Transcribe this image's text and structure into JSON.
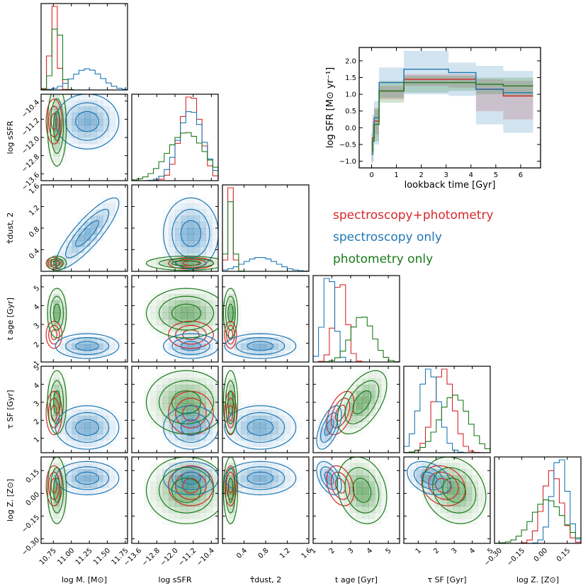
{
  "chart_data": {
    "type": "corner",
    "title": "",
    "parameters": [
      {
        "key": "logM",
        "label": "log M. [M⊙]",
        "range": [
          10.58,
          11.78
        ],
        "ticks": [
          10.75,
          11.0,
          11.25,
          11.5,
          11.75
        ],
        "tick_labels": [
          "10.75",
          "11.00",
          "11.25",
          "11.50",
          "11.75"
        ]
      },
      {
        "key": "logsSFR",
        "label": "log sSFR",
        "range": [
          -13.9,
          -10.1
        ],
        "ticks": [
          -13.6,
          -12.8,
          -12.0,
          -11.2,
          -10.4
        ],
        "tick_labels": [
          "−13.6",
          "−12.8",
          "−12.0",
          "−11.2",
          "−10.4"
        ]
      },
      {
        "key": "tau_dust",
        "label": "τ̂dust, 2",
        "range": [
          0.0,
          1.6
        ],
        "ticks": [
          0.4,
          0.8,
          1.2,
          1.6
        ],
        "tick_labels": [
          "0.4",
          "0.8",
          "1.2",
          "1.6"
        ]
      },
      {
        "key": "t_age",
        "label": "t age [Gyr]",
        "range": [
          1.0,
          5.6
        ],
        "ticks": [
          1,
          2,
          3,
          4,
          5
        ],
        "tick_labels": [
          "1",
          "2",
          "3",
          "4",
          "5"
        ]
      },
      {
        "key": "tau_SF",
        "label": "τ SF [Gyr]",
        "range": [
          0.2,
          5.0
        ],
        "ticks": [
          1,
          2,
          3,
          4,
          5
        ],
        "tick_labels": [
          "1",
          "2",
          "3",
          "4",
          "5"
        ]
      },
      {
        "key": "logZ",
        "label": "log Z. [Z⊙]",
        "range": [
          -0.33,
          0.24
        ],
        "ticks": [
          -0.3,
          -0.15,
          0.0,
          0.15
        ],
        "tick_labels": [
          "−0.30",
          "−0.15",
          "0.00",
          "0.15"
        ]
      }
    ],
    "series": [
      {
        "name": "spectroscopy+photometry",
        "color": "#d62728",
        "means": [
          10.76,
          -11.3,
          0.15,
          2.45,
          2.4,
          0.05
        ],
        "sigmas": [
          0.05,
          0.45,
          0.05,
          0.33,
          0.55,
          0.06
        ],
        "corr": {
          "4-3": 0.5,
          "5-3": -0.3,
          "5-4": -0.2
        }
      },
      {
        "name": "spectroscopy only",
        "color": "#1f77b4",
        "means": [
          11.22,
          -11.3,
          0.7,
          1.85,
          1.6,
          0.1
        ],
        "sigmas": [
          0.2,
          0.55,
          0.3,
          0.3,
          0.55,
          0.05
        ],
        "corr": {
          "2-0": 0.85,
          "4-3": 0.6,
          "5-3": -0.45,
          "5-4": -0.35
        }
      },
      {
        "name": "photometry only",
        "color": "#1a7a1a",
        "means": [
          10.8,
          -11.5,
          0.15,
          3.6,
          3.0,
          0.02
        ],
        "sigmas": [
          0.06,
          0.8,
          0.06,
          0.6,
          0.8,
          0.1
        ],
        "corr": {
          "4-3": 0.55,
          "5-3": -0.2,
          "5-4": -0.2
        }
      }
    ],
    "inset": {
      "type": "step",
      "xlabel": "lookback time [Gyr]",
      "ylabel": "log SFR [M⊙ yr⁻¹]",
      "xlim": [
        -0.5,
        6.8
      ],
      "ylim": [
        -1.2,
        2.4
      ],
      "xticks": [
        0,
        1,
        2,
        3,
        4,
        5,
        6
      ],
      "yticks": [
        -1.0,
        -0.5,
        0.0,
        0.5,
        1.0,
        1.5,
        2.0
      ],
      "ytick_labels": [
        "−1.0",
        "−0.5",
        "0.0",
        "0.5",
        "1.0",
        "1.5",
        "2.0"
      ],
      "edges": [
        0,
        0.03,
        0.1,
        0.3,
        1.3,
        3.1,
        4.2,
        5.3,
        6.5
      ],
      "series": [
        {
          "name": "spectroscopy+photometry",
          "color": "#d62728",
          "values": [
            -0.8,
            -0.3,
            0.2,
            1.1,
            1.45,
            1.45,
            1.15,
            0.95,
            0.75
          ],
          "lo": [
            -1.05,
            -0.7,
            -0.2,
            0.85,
            1.25,
            1.2,
            0.5,
            0.25,
            0.1
          ],
          "hi": [
            -0.4,
            0.1,
            0.6,
            1.25,
            1.6,
            1.6,
            1.45,
            1.4,
            1.3
          ]
        },
        {
          "name": "spectroscopy only",
          "color": "#1f77b4",
          "values": [
            -0.8,
            -0.4,
            0.3,
            1.35,
            1.75,
            1.65,
            1.15,
            1.05,
            0.75
          ],
          "lo": [
            -1.1,
            -1.0,
            -0.5,
            0.9,
            1.0,
            0.95,
            0.1,
            -0.15,
            -0.35
          ],
          "hi": [
            -0.1,
            0.4,
            0.8,
            1.8,
            2.3,
            1.95,
            1.85,
            1.7,
            1.6
          ]
        },
        {
          "name": "photometry only",
          "color": "#1a7a1a",
          "values": [
            -0.7,
            -0.4,
            0.1,
            1.1,
            1.35,
            1.35,
            1.3,
            1.25,
            1.2
          ],
          "lo": [
            -1.05,
            -0.8,
            -0.4,
            0.75,
            1.05,
            1.1,
            1.0,
            0.95,
            0.85
          ],
          "hi": [
            -0.2,
            0.2,
            0.55,
            1.4,
            1.55,
            1.55,
            1.5,
            1.5,
            1.45
          ]
        }
      ]
    },
    "legend": [
      "spectroscopy+photometry",
      "spectroscopy only",
      "photometry only"
    ]
  }
}
